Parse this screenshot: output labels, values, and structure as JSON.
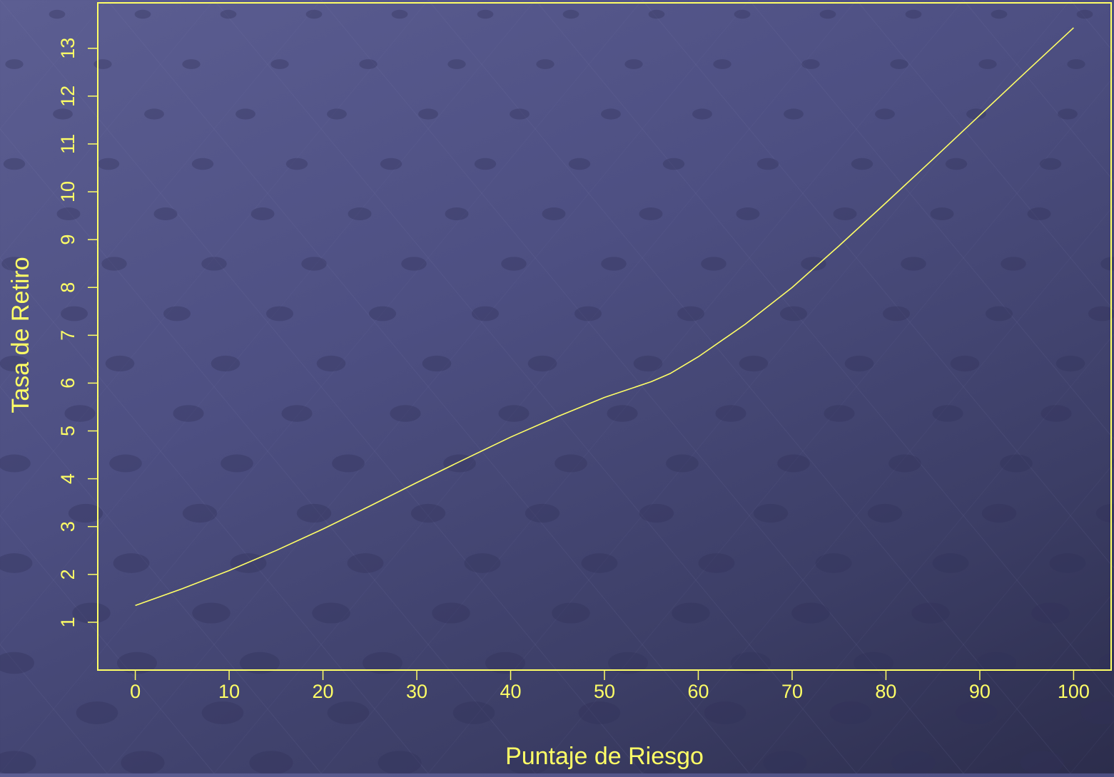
{
  "colors": {
    "axis": "#ffff66",
    "line": "#ffff66",
    "text": "#ffff66"
  },
  "chart_data": {
    "type": "line",
    "title": "",
    "xlabel": "Puntaje de Riesgo",
    "ylabel": "Tasa de Retiro",
    "xlim": [
      -4,
      104
    ],
    "ylim": [
      0,
      13.95
    ],
    "xticks": [
      0,
      10,
      20,
      30,
      40,
      50,
      60,
      70,
      80,
      90,
      100
    ],
    "yticks": [
      1,
      2,
      3,
      4,
      5,
      6,
      7,
      8,
      9,
      10,
      11,
      12,
      13
    ],
    "grid": false,
    "legend": "none",
    "series": [
      {
        "x": [
          0,
          5,
          10,
          15,
          20,
          25,
          30,
          35,
          40,
          45,
          50,
          55,
          57,
          60,
          65,
          70,
          75,
          80,
          85,
          90,
          95,
          100
        ],
        "y": [
          1.35,
          1.7,
          2.08,
          2.5,
          2.95,
          3.43,
          3.92,
          4.4,
          4.87,
          5.3,
          5.7,
          6.03,
          6.2,
          6.55,
          7.23,
          8.0,
          8.87,
          9.77,
          10.68,
          11.6,
          12.52,
          13.43
        ]
      }
    ]
  }
}
